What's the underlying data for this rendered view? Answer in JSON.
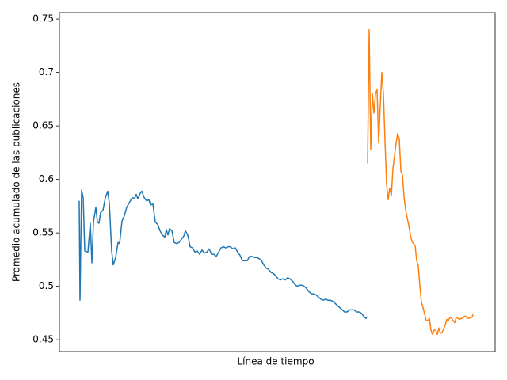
{
  "chart_data": {
    "type": "line",
    "xlabel": "Línea de tiempo",
    "ylabel": "Promedio acumulado de las publicaciones",
    "xlim": [
      -25,
      525
    ],
    "ylim": [
      0.439,
      0.756
    ],
    "yticks": [
      0.45,
      0.5,
      0.55,
      0.6,
      0.65,
      0.7,
      0.75
    ],
    "series": [
      {
        "color": "#1f77b4",
        "x": [
          0,
          1,
          3,
          5,
          7,
          11,
          14,
          16,
          18,
          21,
          23,
          25,
          27,
          30,
          33,
          36,
          38,
          41,
          43,
          46,
          49,
          51,
          54,
          57,
          60,
          63,
          67,
          70,
          72,
          74,
          77,
          79,
          82,
          85,
          88,
          90,
          93,
          96,
          99,
          102,
          105,
          108,
          110,
          112,
          114,
          117,
          120,
          123,
          126,
          129,
          132,
          134,
          137,
          140,
          143,
          146,
          149,
          152,
          155,
          158,
          161,
          164,
          167,
          170,
          173,
          176,
          179,
          182,
          185,
          188,
          191,
          194,
          197,
          200,
          203,
          206,
          209,
          212,
          215,
          218,
          221,
          224,
          227,
          230,
          233,
          236,
          239,
          242,
          245,
          248,
          251,
          254,
          257,
          260,
          263,
          266,
          269,
          272,
          275,
          278,
          281,
          284,
          287,
          290,
          293,
          296,
          299,
          302,
          305,
          308,
          311,
          314,
          317,
          320,
          323,
          326,
          329,
          332,
          335,
          338,
          341,
          344,
          347,
          350,
          353,
          356,
          359,
          362,
          363
        ],
        "values": [
          0.58,
          0.487,
          0.59,
          0.583,
          0.533,
          0.532,
          0.559,
          0.522,
          0.56,
          0.574,
          0.56,
          0.559,
          0.569,
          0.571,
          0.583,
          0.589,
          0.578,
          0.533,
          0.52,
          0.527,
          0.541,
          0.54,
          0.561,
          0.566,
          0.574,
          0.578,
          0.583,
          0.582,
          0.586,
          0.582,
          0.587,
          0.589,
          0.583,
          0.58,
          0.581,
          0.576,
          0.577,
          0.56,
          0.558,
          0.552,
          0.548,
          0.546,
          0.553,
          0.548,
          0.554,
          0.552,
          0.541,
          0.54,
          0.541,
          0.544,
          0.547,
          0.552,
          0.548,
          0.537,
          0.536,
          0.532,
          0.533,
          0.53,
          0.534,
          0.531,
          0.532,
          0.535,
          0.53,
          0.53,
          0.528,
          0.532,
          0.536,
          0.537,
          0.536,
          0.537,
          0.537,
          0.535,
          0.536,
          0.532,
          0.529,
          0.524,
          0.524,
          0.524,
          0.528,
          0.528,
          0.527,
          0.527,
          0.526,
          0.524,
          0.52,
          0.517,
          0.516,
          0.513,
          0.512,
          0.51,
          0.507,
          0.506,
          0.507,
          0.506,
          0.508,
          0.507,
          0.505,
          0.502,
          0.5,
          0.501,
          0.501,
          0.5,
          0.498,
          0.495,
          0.493,
          0.493,
          0.492,
          0.49,
          0.488,
          0.487,
          0.488,
          0.487,
          0.487,
          0.486,
          0.484,
          0.482,
          0.48,
          0.478,
          0.476,
          0.476,
          0.478,
          0.478,
          0.478,
          0.476,
          0.476,
          0.475,
          0.472,
          0.47,
          0.471
        ]
      },
      {
        "color": "#ff7f0e",
        "x": [
          364,
          366,
          368,
          370,
          372,
          374,
          376,
          378,
          380,
          382,
          384,
          386,
          388,
          390,
          392,
          394,
          396,
          398,
          400,
          402,
          404,
          406,
          408,
          410,
          412,
          414,
          416,
          418,
          420,
          422,
          424,
          426,
          428,
          430,
          432,
          434,
          436,
          438,
          440,
          442,
          444,
          446,
          448,
          450,
          452,
          454,
          456,
          458,
          460,
          462,
          464,
          466,
          468,
          470,
          472,
          474,
          476,
          478,
          480,
          482,
          484,
          486,
          488,
          490,
          492,
          494,
          496,
          497
        ],
        "values": [
          0.615,
          0.74,
          0.628,
          0.68,
          0.662,
          0.68,
          0.684,
          0.634,
          0.669,
          0.7,
          0.68,
          0.636,
          0.596,
          0.581,
          0.592,
          0.585,
          0.61,
          0.622,
          0.634,
          0.643,
          0.638,
          0.608,
          0.604,
          0.584,
          0.572,
          0.564,
          0.557,
          0.548,
          0.542,
          0.54,
          0.538,
          0.524,
          0.519,
          0.5,
          0.485,
          0.48,
          0.474,
          0.468,
          0.468,
          0.47,
          0.459,
          0.455,
          0.459,
          0.459,
          0.455,
          0.461,
          0.456,
          0.457,
          0.46,
          0.464,
          0.469,
          0.468,
          0.471,
          0.47,
          0.468,
          0.466,
          0.471,
          0.47,
          0.469,
          0.47,
          0.47,
          0.472,
          0.472,
          0.47,
          0.47,
          0.471,
          0.471,
          0.474
        ]
      }
    ]
  }
}
